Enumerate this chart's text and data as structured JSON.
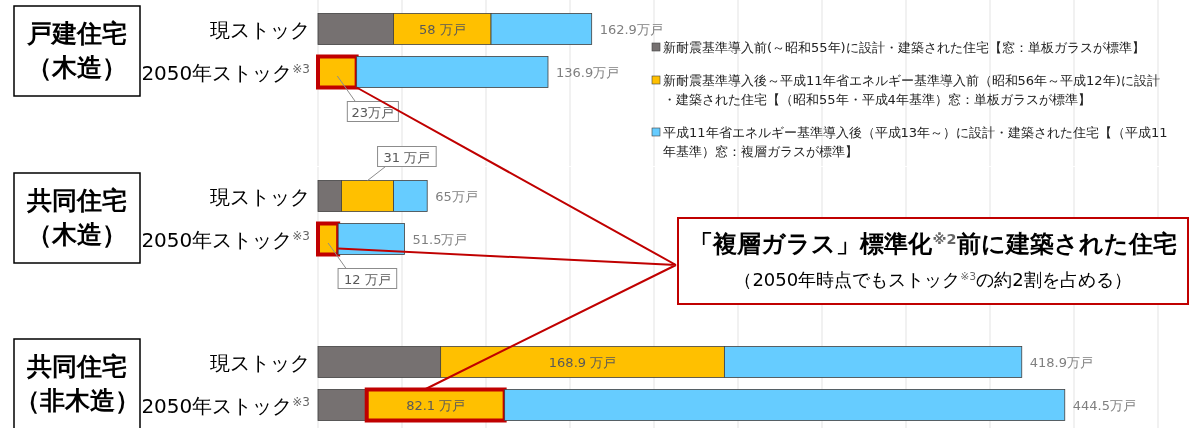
{
  "chart_data": [
    {
      "type": "bar",
      "orientation": "horizontal",
      "stacked": true,
      "title": "戸建住宅（木造）",
      "categories": [
        "現ストック",
        "2050年ストック$^{※3}$"
      ],
      "series": [
        {
          "name": "新耐震基準導入前(～昭和55年)に設計・建築された住宅【窓：単板ガラスが標準】",
          "color": "#767171",
          "values": [
            45,
            null
          ]
        },
        {
          "name": "新耐震基準導入後～平成11年省エネルギー基準導入前（昭和56年～平成12年)に設計・建築された住宅【（昭和55年・平成4年基準）窓：単板ガラスが標準】",
          "color": "#ffc000",
          "values": [
            58,
            23
          ],
          "value_labels": [
            "58 万戸",
            "23万戸"
          ]
        },
        {
          "name": "平成11年省エネルギー基準導入後（平成13年～）に設計・建築された住宅【（平成11年基準）窓：複層ガラスが標準】",
          "color": "#66ccff",
          "values": [
            59.9,
            113.9
          ]
        }
      ],
      "totals": [
        "162.9万戸",
        "136.9万戸"
      ],
      "xlim": [
        0,
        500
      ],
      "xticks": [
        {
          "value": 0,
          "label": null
        },
        {
          "value": 50,
          "label": null
        },
        {
          "value": 100,
          "label": null
        },
        {
          "value": 150,
          "label": null
        },
        {
          "value": 200,
          "label": null
        },
        {
          "value": 250,
          "label": null
        },
        {
          "value": 300,
          "label": null
        },
        {
          "value": 350,
          "label": null
        },
        {
          "value": 400,
          "label": null
        },
        {
          "value": 450,
          "label": null
        },
        {
          "value": 500,
          "label": null
        }
      ],
      "grid": "x",
      "legend": "right"
    },
    {
      "type": "bar",
      "orientation": "horizontal",
      "stacked": true,
      "title": "共同住宅（木造）",
      "categories": [
        "現ストック",
        "2050年ストック$^{※3}$"
      ],
      "series": [
        {
          "color": "#767171",
          "values": [
            14,
            null
          ]
        },
        {
          "color": "#ffc000",
          "values": [
            31,
            12
          ],
          "value_labels": [
            "31 万戸",
            "12 万戸"
          ]
        },
        {
          "color": "#66ccff",
          "values": [
            20,
            39.5
          ]
        }
      ],
      "totals": [
        "65万戸",
        "51.5万戸"
      ],
      "annotations": [
        "「複層ガラス」標準化$^{※2}$前に建築された住宅",
        "（2050年時点でもストック$^{※3}$の約2割を占める）"
      ],
      "xlim": [
        0,
        500
      ],
      "xticks": [
        {
          "value": 0,
          "label": null
        },
        {
          "value": 50,
          "label": null
        },
        {
          "value": 100,
          "label": null
        },
        {
          "value": 150,
          "label": null
        },
        {
          "value": 200,
          "label": null
        },
        {
          "value": 250,
          "label": null
        },
        {
          "value": 300,
          "label": null
        },
        {
          "value": 350,
          "label": null
        },
        {
          "value": 400,
          "label": null
        },
        {
          "value": 450,
          "label": null
        },
        {
          "value": 500,
          "label": null
        }
      ],
      "grid": "x"
    },
    {
      "type": "bar",
      "orientation": "horizontal",
      "stacked": true,
      "title": "共同住宅（非木造）",
      "categories": [
        "現ストック",
        "2050年ストック$^{※3}$"
      ],
      "series": [
        {
          "color": "#767171",
          "values": [
            73,
            29
          ]
        },
        {
          "color": "#ffc000",
          "values": [
            168.9,
            82.1
          ],
          "value_labels": [
            "168.9 万戸",
            "82.1 万戸"
          ]
        },
        {
          "color": "#66ccff",
          "values": [
            177,
            333.4
          ]
        }
      ],
      "totals": [
        "418.9万戸",
        "444.5万戸"
      ],
      "xlim": [
        0,
        500
      ],
      "xticks": [
        {
          "value": 0,
          "label": null
        },
        {
          "value": 50,
          "label": null
        },
        {
          "value": 100,
          "label": null
        },
        {
          "value": 150,
          "label": null
        },
        {
          "value": 200,
          "label": null
        },
        {
          "value": 250,
          "label": null
        },
        {
          "value": 300,
          "label": null
        },
        {
          "value": 350,
          "label": null
        },
        {
          "value": 400,
          "label": null
        },
        {
          "value": 450,
          "label": null
        },
        {
          "value": 500,
          "label": null
        }
      ],
      "grid": "x"
    }
  ]
}
